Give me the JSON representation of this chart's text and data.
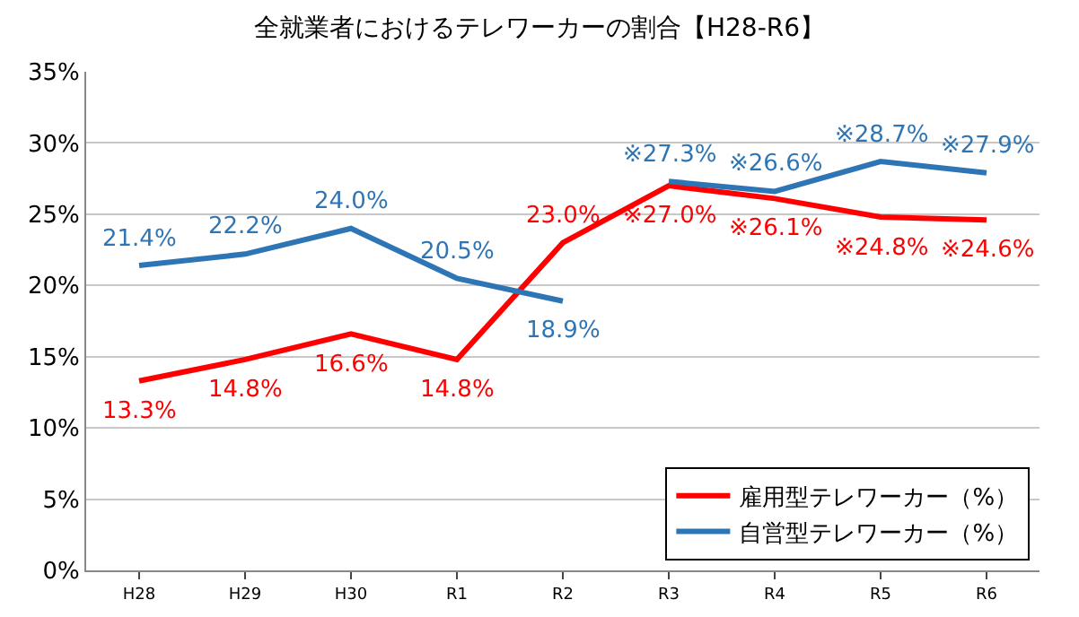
{
  "chart_data": {
    "type": "line",
    "title": "全就業者におけるテレワーカーの割合【H28-R6】",
    "categories": [
      "H28",
      "H29",
      "H30",
      "R1",
      "R2",
      "R3",
      "R4",
      "R5",
      "R6"
    ],
    "series": [
      {
        "name": "雇用型テレワーカー（%）",
        "color": "#ff0000",
        "values": [
          13.3,
          14.8,
          16.6,
          14.8,
          23.0,
          27.0,
          26.1,
          24.8,
          24.6
        ],
        "value_labels": [
          "13.3%",
          "14.8%",
          "16.6%",
          "14.8%",
          "23.0%",
          "※27.0%",
          "※26.1%",
          "※24.8%",
          "※24.6%"
        ]
      },
      {
        "name": "自営型テレワーカー（%）",
        "color": "#2e75b6",
        "values": [
          21.4,
          22.2,
          24.0,
          20.5,
          18.9,
          null,
          null,
          null,
          null
        ],
        "value_labels": [
          "21.4%",
          "22.2%",
          "24.0%",
          "20.5%",
          "18.9%",
          null,
          null,
          null,
          null
        ]
      },
      {
        "color": "#2e75b6",
        "values": [
          null,
          null,
          null,
          null,
          null,
          27.3,
          26.6,
          28.7,
          27.9
        ],
        "value_labels": [
          null,
          null,
          null,
          null,
          null,
          "※27.3%",
          "※26.6%",
          "※28.7%",
          "※27.9%"
        ]
      }
    ],
    "ylim": [
      0,
      35
    ],
    "yticks": [
      {
        "value": 0,
        "label": "0%"
      },
      {
        "value": 5,
        "label": "5%"
      },
      {
        "value": 10,
        "label": "10%"
      },
      {
        "value": 15,
        "label": "15%"
      },
      {
        "value": 20,
        "label": "20%"
      },
      {
        "value": 25,
        "label": "25%"
      },
      {
        "value": 30,
        "label": "30%"
      },
      {
        "value": 35,
        "label": "35%"
      }
    ],
    "grid": "y",
    "legend": "bottom right",
    "marker": "none",
    "line_style": "solid"
  }
}
